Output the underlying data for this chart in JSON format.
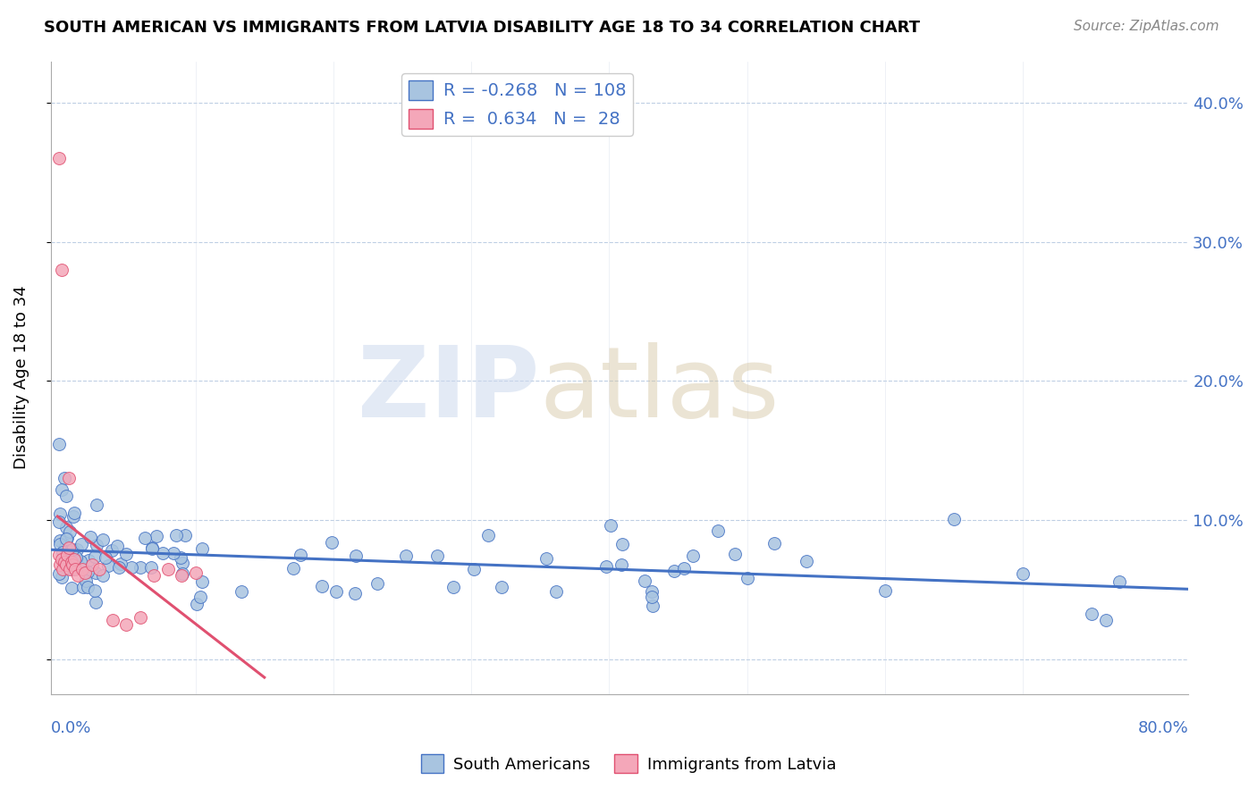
{
  "title": "SOUTH AMERICAN VS IMMIGRANTS FROM LATVIA DISABILITY AGE 18 TO 34 CORRELATION CHART",
  "source": "Source: ZipAtlas.com",
  "ylabel": "Disability Age 18 to 34",
  "xlim": [
    -0.005,
    0.82
  ],
  "ylim": [
    -0.025,
    0.43
  ],
  "blue_R": -0.268,
  "blue_N": 108,
  "pink_R": 0.634,
  "pink_N": 28,
  "blue_scatter_color": "#a8c4e0",
  "blue_line_color": "#4472c4",
  "pink_scatter_color": "#f4a7b9",
  "pink_line_color": "#e05070",
  "legend_label_blue": "South Americans",
  "legend_label_pink": "Immigrants from Latvia"
}
